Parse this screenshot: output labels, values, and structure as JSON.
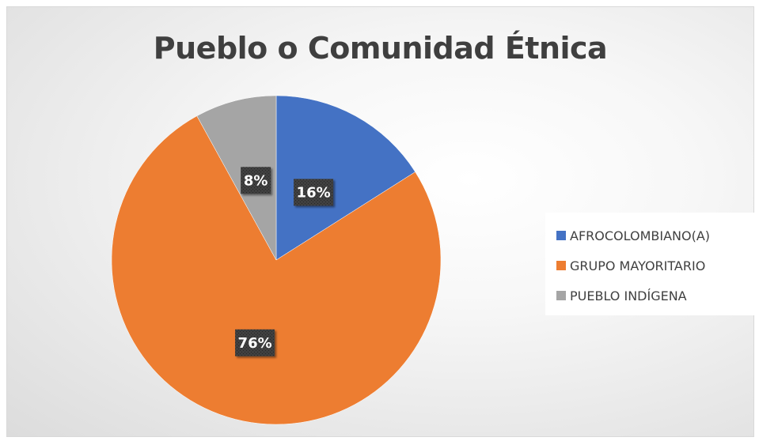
{
  "chart_data": {
    "type": "pie",
    "title": "Pueblo o Comunidad Étnica",
    "categories": [
      "AFROCOLOMBIANO(A)",
      "GRUPO MAYORITARIO",
      "PUEBLO INDÍGENA"
    ],
    "values": [
      16,
      76,
      8
    ],
    "labels": [
      "16%",
      "76%",
      "8%"
    ],
    "colors": [
      "#4472c4",
      "#ed7d31",
      "#a5a5a5"
    ],
    "legend_position": "right"
  }
}
